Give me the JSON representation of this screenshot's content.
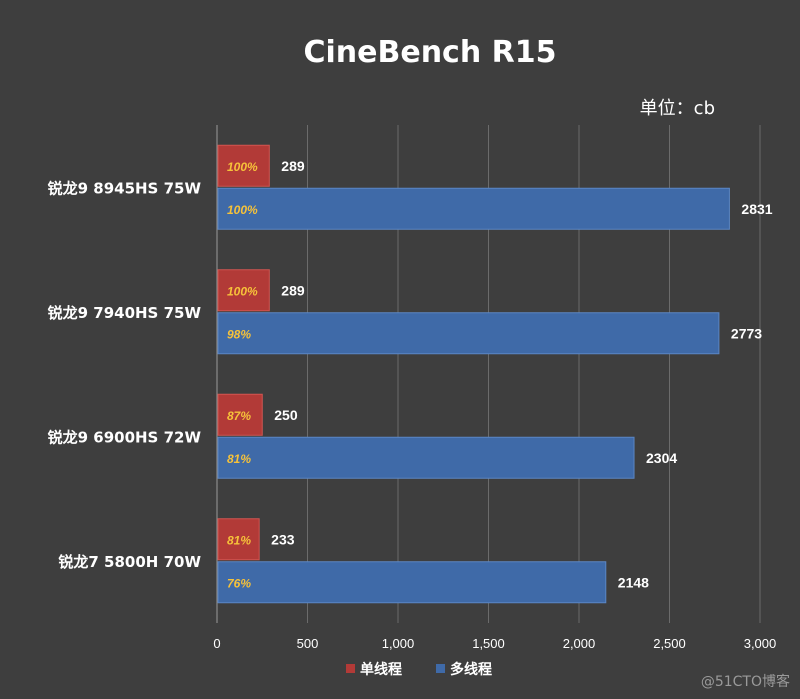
{
  "chart_data": {
    "type": "bar",
    "orientation": "horizontal",
    "title": "CineBench R15",
    "unit_label": "单位：cb",
    "categories": [
      "锐龙9 8945HS 75W",
      "锐龙9 7940HS 75W",
      "锐龙9 6900HS 72W",
      "锐龙7 5800H  70W"
    ],
    "series": [
      {
        "name": "单线程",
        "color": "#b23a37",
        "values": [
          289,
          289,
          250,
          233
        ],
        "percent_labels": [
          "100%",
          "100%",
          "87%",
          "81%"
        ]
      },
      {
        "name": "多线程",
        "color": "#3f6aa8",
        "values": [
          2831,
          2773,
          2304,
          2148
        ],
        "percent_labels": [
          "100%",
          "98%",
          "81%",
          "76%"
        ]
      }
    ],
    "xlim": [
      0,
      3000
    ],
    "x_ticks": [
      "0",
      "500",
      "1,000",
      "1,500",
      "2,000",
      "2,500",
      "3,000"
    ],
    "grid": true,
    "legend_position": "bottom"
  },
  "watermark": "@51CTO博客"
}
